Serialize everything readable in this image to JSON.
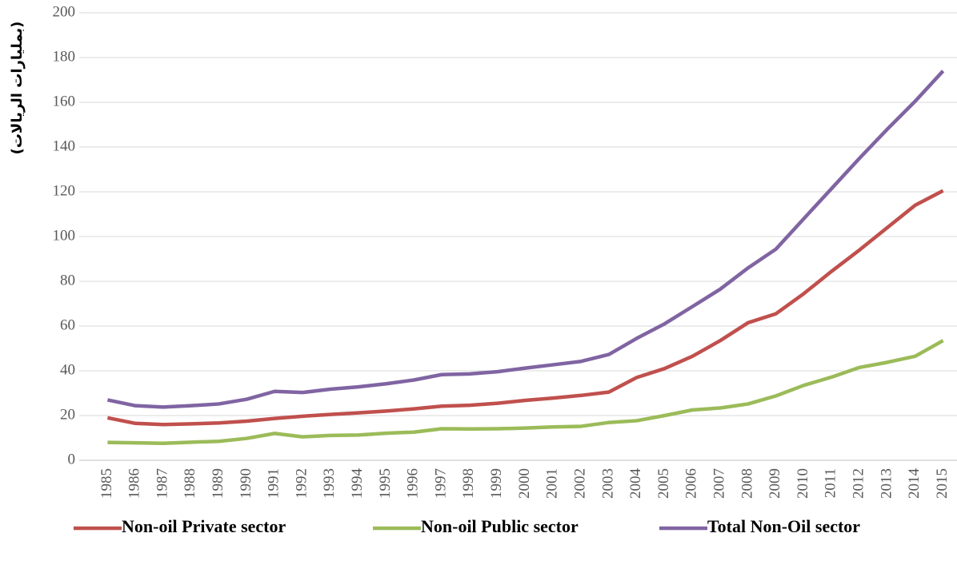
{
  "chart_data": {
    "type": "line",
    "y_label": "(بمليارات الريالات)",
    "categories": [
      "1985",
      "1986",
      "1987",
      "1988",
      "1989",
      "1990",
      "1991",
      "1992",
      "1993",
      "1994",
      "1995",
      "1996",
      "1997",
      "1998",
      "1999",
      "2000",
      "2001",
      "2002",
      "2003",
      "2004",
      "2005",
      "2006",
      "2007",
      "2008",
      "2009",
      "2010",
      "2011",
      "2012",
      "2013",
      "2014",
      "2015"
    ],
    "series": [
      {
        "name": "Non-oil Private sector",
        "color": "#c0504d",
        "values": [
          19,
          16.5,
          16,
          16.3,
          16.7,
          17.5,
          18.7,
          19.7,
          20.5,
          21.2,
          22,
          23,
          24.2,
          24.6,
          25.5,
          26.8,
          27.8,
          29,
          30.5,
          37,
          41,
          46.5,
          53.5,
          61.5,
          65.5,
          74.5,
          84.5,
          94,
          104,
          114,
          120.5
        ]
      },
      {
        "name": "Non-oil Public sector",
        "color": "#9bbb59",
        "values": [
          8,
          7.8,
          7.6,
          8.1,
          8.5,
          9.8,
          12,
          10.5,
          11.1,
          11.3,
          12.1,
          12.6,
          14.1,
          14,
          14.1,
          14.4,
          14.9,
          15.2,
          16.9,
          17.7,
          20,
          22.5,
          23.4,
          25.2,
          28.8,
          33.5,
          37.2,
          41.5,
          43.8,
          46.5,
          53.5
        ]
      },
      {
        "name": "Total Non-Oil sector",
        "color": "#8064a2",
        "values": [
          27,
          24.4,
          23.8,
          24.4,
          25.2,
          27.3,
          30.8,
          30.3,
          31.8,
          32.8,
          34.2,
          35.9,
          38.3,
          38.6,
          39.6,
          41.2,
          42.7,
          44.2,
          47.3,
          54.5,
          61,
          68.7,
          76.5,
          86,
          94.4,
          108,
          121.5,
          135,
          148,
          160.5,
          174
        ]
      }
    ],
    "ylim": [
      0,
      200
    ],
    "yticks": [
      0,
      20,
      40,
      60,
      80,
      100,
      120,
      140,
      160,
      180,
      200
    ],
    "grid": true,
    "legend": "bottom"
  }
}
